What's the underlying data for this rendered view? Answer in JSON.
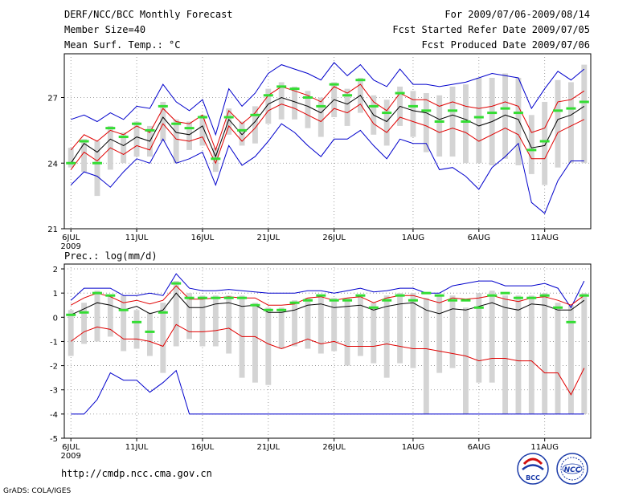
{
  "header": {
    "title": "DERF/NCC/BCC Monthly Forecast",
    "member_size": "Member Size=40",
    "variable": "Mean Surf. Temp.: °C",
    "period": "For 2009/07/06-2009/08/14",
    "started": "Fcst Started Refer Date 2009/07/05",
    "produced": "Fcst Produced Date 2009/07/06"
  },
  "footer": {
    "url": "http://cmdp.ncc.cma.gov.cn",
    "grads": "GrADS: COLA/IGES",
    "logo_bcc": "BCC",
    "logo_ncc": "NCC"
  },
  "colors": {
    "mean": "#000000",
    "spread": "#e00000",
    "range": "#0000cc",
    "box": "#d4d4d4",
    "obs": "#33dd33"
  },
  "chart_data": [
    {
      "type": "line",
      "title": "Mean Surf. Temp.: °C",
      "days": 40,
      "x_ticks": [
        "6JUL",
        "11JUL",
        "16JUL",
        "21JUL",
        "26JUL",
        "1AUG",
        "6AUG",
        "11AUG"
      ],
      "x_tick_days": [
        0,
        5,
        10,
        15,
        20,
        26,
        31,
        36
      ],
      "year_label": "2009",
      "ylim": [
        21,
        29
      ],
      "y_ticks": [
        21,
        24,
        27
      ],
      "y_tick_labels": [
        "21",
        "24",
        "27"
      ],
      "series": [
        {
          "name": "ensemble mean",
          "values": [
            24.0,
            24.9,
            24.5,
            25.1,
            24.8,
            25.2,
            25.0,
            26.1,
            25.4,
            25.3,
            25.7,
            24.3,
            26.0,
            25.3,
            25.9,
            26.7,
            27.0,
            26.8,
            26.6,
            26.3,
            26.9,
            26.7,
            27.1,
            26.2,
            25.9,
            26.6,
            26.4,
            26.3,
            26.0,
            26.2,
            26.0,
            25.7,
            25.9,
            26.2,
            26.0,
            24.7,
            24.8,
            26.0,
            26.2,
            26.6
          ]
        },
        {
          "name": "mean plus sd",
          "values": [
            24.6,
            25.3,
            25.0,
            25.5,
            25.3,
            25.7,
            25.4,
            26.5,
            25.9,
            25.8,
            26.2,
            24.6,
            26.4,
            25.8,
            26.3,
            27.1,
            27.5,
            27.3,
            27.1,
            26.8,
            27.5,
            27.2,
            27.6,
            26.8,
            26.4,
            27.2,
            26.9,
            26.9,
            26.6,
            26.8,
            26.6,
            26.5,
            26.6,
            26.8,
            26.6,
            25.4,
            25.6,
            26.8,
            26.9,
            27.3
          ]
        },
        {
          "name": "mean minus sd",
          "values": [
            23.7,
            24.5,
            24.1,
            24.7,
            24.4,
            24.8,
            24.6,
            25.8,
            25.1,
            25.0,
            25.2,
            24.0,
            25.7,
            25.0,
            25.6,
            26.4,
            26.7,
            26.5,
            26.2,
            25.9,
            26.5,
            26.3,
            26.7,
            25.8,
            25.4,
            26.1,
            25.9,
            25.7,
            25.4,
            25.6,
            25.4,
            25.0,
            25.3,
            25.6,
            25.3,
            24.2,
            24.2,
            25.4,
            25.7,
            26.0
          ]
        },
        {
          "name": "ensemble max",
          "values": [
            26.0,
            26.2,
            25.9,
            26.3,
            26.0,
            26.6,
            26.5,
            27.6,
            26.8,
            26.4,
            26.9,
            25.3,
            27.4,
            26.6,
            27.2,
            28.1,
            28.5,
            28.3,
            28.1,
            27.8,
            28.6,
            28.0,
            28.5,
            27.8,
            27.5,
            28.3,
            27.6,
            27.6,
            27.5,
            27.6,
            27.7,
            27.9,
            28.1,
            28.0,
            27.9,
            26.5,
            27.4,
            28.2,
            27.8,
            28.3
          ]
        },
        {
          "name": "ensemble min",
          "values": [
            23.0,
            23.6,
            23.4,
            22.9,
            23.6,
            24.2,
            24.0,
            25.1,
            24.0,
            24.2,
            24.5,
            23.0,
            24.8,
            23.9,
            24.3,
            25.0,
            25.8,
            25.4,
            24.8,
            24.3,
            25.1,
            25.1,
            25.5,
            24.8,
            24.2,
            25.1,
            24.9,
            24.9,
            23.7,
            23.8,
            23.4,
            22.8,
            23.8,
            24.3,
            24.9,
            22.2,
            21.7,
            23.2,
            24.1,
            24.1
          ]
        },
        {
          "name": "box top",
          "values": [
            24.7,
            25.1,
            25.0,
            25.7,
            25.4,
            25.9,
            25.7,
            26.8,
            26.0,
            25.9,
            26.2,
            24.7,
            26.5,
            25.9,
            26.6,
            27.4,
            27.7,
            27.5,
            27.3,
            27.0,
            27.7,
            27.4,
            27.9,
            27.1,
            26.9,
            27.5,
            27.3,
            27.2,
            27.1,
            27.5,
            27.6,
            27.9,
            27.9,
            28.1,
            27.9,
            26.2,
            26.8,
            27.8,
            27.7,
            28.5
          ]
        },
        {
          "name": "box bottom",
          "values": [
            23.8,
            23.6,
            22.5,
            23.7,
            24.0,
            24.3,
            24.3,
            25.0,
            24.0,
            24.6,
            24.8,
            23.6,
            25.3,
            24.8,
            24.9,
            25.8,
            26.0,
            26.0,
            25.6,
            25.2,
            26.1,
            25.7,
            26.3,
            25.3,
            24.8,
            25.7,
            25.2,
            24.5,
            24.3,
            24.3,
            24.0,
            24.0,
            23.9,
            24.2,
            23.9,
            23.5,
            23.0,
            23.8,
            24.0,
            24.0
          ]
        },
        {
          "name": "observation",
          "values": [
            24.0,
            25.0,
            24.0,
            25.6,
            25.2,
            25.8,
            25.5,
            26.6,
            25.8,
            25.6,
            26.1,
            24.2,
            26.1,
            25.5,
            26.2,
            27.1,
            27.5,
            27.4,
            27.0,
            26.6,
            27.6,
            27.1,
            27.8,
            26.6,
            26.3,
            27.2,
            26.6,
            26.4,
            25.9,
            26.4,
            25.9,
            26.1,
            26.3,
            26.5,
            26.3,
            24.6,
            25.0,
            26.4,
            26.5,
            26.8
          ]
        }
      ]
    },
    {
      "type": "line",
      "title": "Prec.: log(mm/d)",
      "days": 40,
      "x_ticks": [
        "6JUL",
        "11JUL",
        "16JUL",
        "21JUL",
        "26JUL",
        "1AUG",
        "6AUG",
        "11AUG"
      ],
      "x_tick_days": [
        0,
        5,
        10,
        15,
        20,
        26,
        31,
        36
      ],
      "year_label": "2009",
      "ylim": [
        -5,
        2.2
      ],
      "y_ticks": [
        -5,
        -4,
        -3,
        -2,
        -1,
        0,
        1,
        2
      ],
      "y_tick_labels": [
        "-5",
        "-4",
        "-3",
        "-2",
        "-1",
        "0",
        "1",
        "2"
      ],
      "series": [
        {
          "name": "ensemble mean",
          "values": [
            0.1,
            0.35,
            0.6,
            0.5,
            0.3,
            0.45,
            0.15,
            0.3,
            1.0,
            0.4,
            0.4,
            0.55,
            0.6,
            0.45,
            0.5,
            0.2,
            0.2,
            0.3,
            0.5,
            0.55,
            0.4,
            0.45,
            0.5,
            0.3,
            0.45,
            0.55,
            0.6,
            0.3,
            0.15,
            0.35,
            0.3,
            0.45,
            0.6,
            0.4,
            0.3,
            0.55,
            0.5,
            0.3,
            0.3,
            0.7
          ]
        },
        {
          "name": "mean plus sd",
          "values": [
            0.5,
            0.8,
            1.0,
            0.85,
            0.6,
            0.7,
            0.55,
            0.7,
            1.3,
            0.75,
            0.75,
            0.8,
            0.85,
            0.8,
            0.8,
            0.5,
            0.5,
            0.55,
            0.8,
            0.85,
            0.7,
            0.8,
            0.85,
            0.6,
            0.8,
            0.9,
            0.9,
            0.75,
            0.6,
            0.8,
            0.75,
            0.8,
            0.9,
            0.75,
            0.65,
            0.8,
            0.85,
            0.7,
            0.5,
            0.9
          ]
        },
        {
          "name": "mean minus sd",
          "values": [
            -1.0,
            -0.6,
            -0.4,
            -0.5,
            -0.9,
            -0.9,
            -1.0,
            -1.2,
            -0.3,
            -0.6,
            -0.6,
            -0.55,
            -0.45,
            -0.8,
            -0.8,
            -1.1,
            -1.3,
            -1.1,
            -0.9,
            -1.1,
            -1.0,
            -1.2,
            -1.2,
            -1.2,
            -1.1,
            -1.2,
            -1.3,
            -1.3,
            -1.4,
            -1.5,
            -1.6,
            -1.8,
            -1.7,
            -1.7,
            -1.8,
            -1.8,
            -2.3,
            -2.3,
            -3.2,
            -2.1
          ]
        },
        {
          "name": "ensemble max",
          "values": [
            0.7,
            1.2,
            1.2,
            1.2,
            0.9,
            0.9,
            1.0,
            0.9,
            1.8,
            1.2,
            1.1,
            1.1,
            1.15,
            1.1,
            1.05,
            1.0,
            1.0,
            1.0,
            1.1,
            1.1,
            1.0,
            1.1,
            1.2,
            1.05,
            1.1,
            1.2,
            1.2,
            1.0,
            1.0,
            1.3,
            1.4,
            1.5,
            1.5,
            1.3,
            1.3,
            1.3,
            1.4,
            1.2,
            0.4,
            1.5
          ]
        },
        {
          "name": "ensemble min",
          "values": [
            -4.0,
            -4.0,
            -3.4,
            -2.3,
            -2.6,
            -2.6,
            -3.1,
            -2.7,
            -2.2,
            -4.0,
            -4.0,
            -4.0,
            -4.0,
            -4.0,
            -4.0,
            -4.0,
            -4.0,
            -4.0,
            -4.0,
            -4.0,
            -4.0,
            -4.0,
            -4.0,
            -4.0,
            -4.0,
            -4.0,
            -4.0,
            -4.0,
            -4.0,
            -4.0,
            -4.0,
            -4.0,
            -4.0,
            -4.0,
            -4.0,
            -4.0,
            -4.0,
            -4.0,
            -4.0,
            -4.0
          ]
        },
        {
          "name": "box top",
          "values": [
            0.3,
            0.6,
            1.1,
            0.9,
            0.9,
            0.3,
            0.2,
            0.6,
            1.5,
            1.0,
            0.9,
            0.9,
            0.9,
            0.9,
            0.6,
            0.4,
            0.4,
            0.7,
            0.8,
            0.9,
            0.8,
            0.8,
            0.9,
            0.6,
            0.9,
            1.0,
            1.0,
            0.8,
            0.9,
            0.9,
            0.4,
            1.0,
            1.1,
            0.9,
            0.9,
            0.9,
            1.0,
            0.6,
            0.5,
            1.0
          ]
        },
        {
          "name": "box bottom",
          "values": [
            -1.6,
            -1.1,
            -1.0,
            -0.8,
            -1.4,
            -1.3,
            -1.6,
            -2.3,
            -1.2,
            -0.9,
            -1.2,
            -1.2,
            -1.5,
            -2.5,
            -2.7,
            -2.8,
            -1.3,
            -1.2,
            -1.3,
            -1.5,
            -1.4,
            -2.0,
            -1.6,
            -1.9,
            -2.5,
            -1.9,
            -2.1,
            -4.0,
            -2.3,
            -2.1,
            -4.0,
            -2.7,
            -2.7,
            -4.0,
            -4.0,
            -4.0,
            -4.0,
            -4.0,
            -4.0,
            -4.0
          ]
        },
        {
          "name": "observation",
          "values": [
            0.1,
            0.2,
            1.0,
            0.9,
            0.3,
            -0.2,
            -0.6,
            0.2,
            1.4,
            0.8,
            0.8,
            0.8,
            0.8,
            0.8,
            0.5,
            0.3,
            0.3,
            0.6,
            0.7,
            0.9,
            0.7,
            0.7,
            0.9,
            0.4,
            0.7,
            0.9,
            0.7,
            1.0,
            0.9,
            0.7,
            0.7,
            0.4,
            0.9,
            1.0,
            0.8,
            0.8,
            0.9,
            0.4,
            -0.2,
            0.9
          ]
        }
      ]
    }
  ]
}
